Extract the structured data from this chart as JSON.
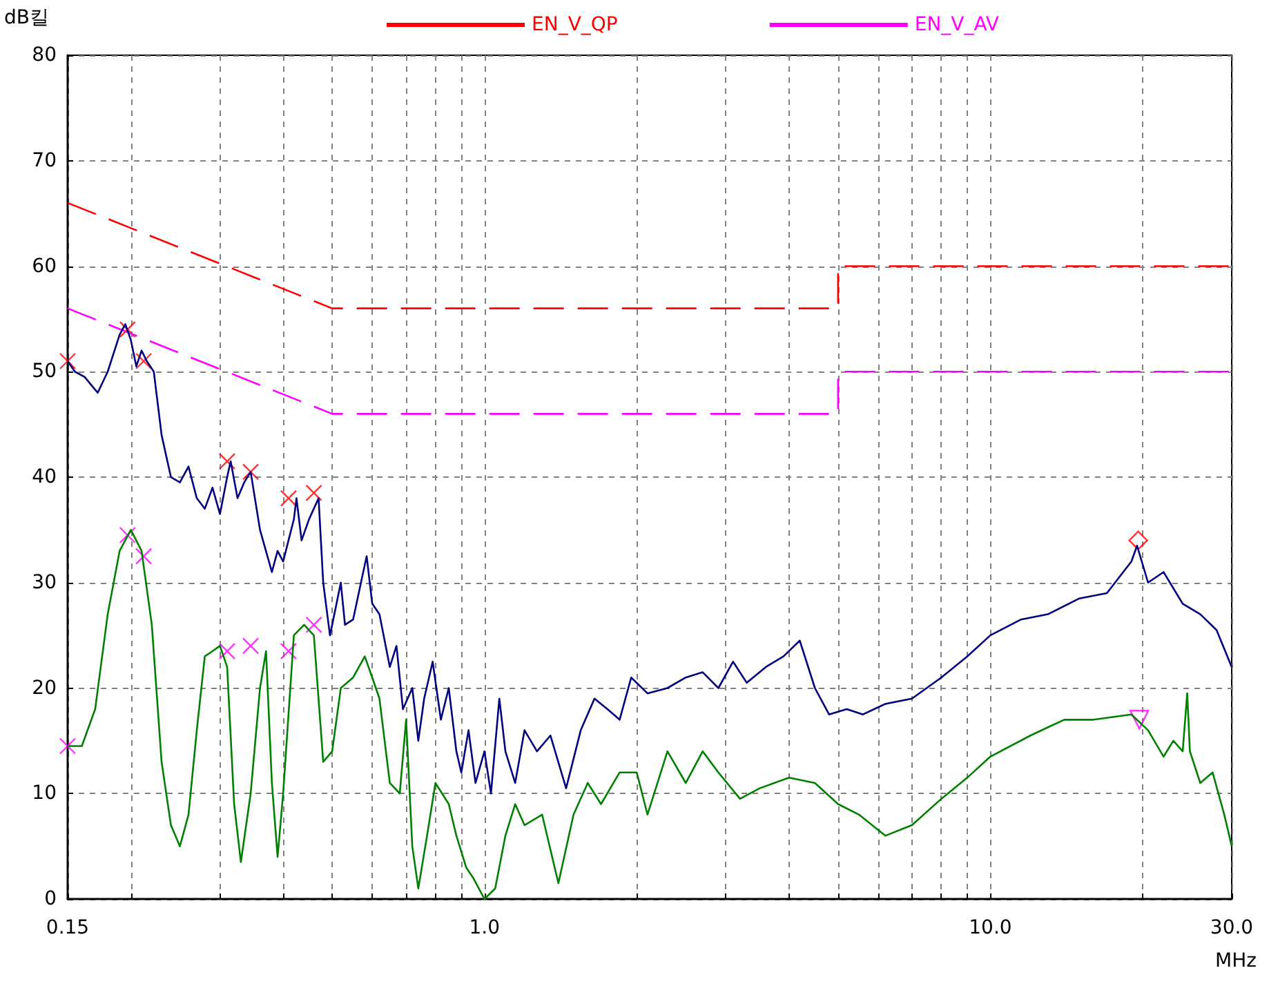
{
  "chart_data": {
    "type": "line",
    "xlabel": "MHz",
    "ylabel": "dB킬",
    "log": "x",
    "grid": true,
    "legend": "top",
    "xlim": [
      0.15,
      30
    ],
    "ylim": [
      0,
      80
    ],
    "xticks": [
      {
        "value": 0.15,
        "label": "0.15"
      },
      {
        "value": 0.2,
        "label": null
      },
      {
        "value": 0.3,
        "label": null
      },
      {
        "value": 0.4,
        "label": null
      },
      {
        "value": 0.5,
        "label": null
      },
      {
        "value": 0.6,
        "label": null
      },
      {
        "value": 0.7,
        "label": null
      },
      {
        "value": 0.8,
        "label": null
      },
      {
        "value": 0.9,
        "label": null
      },
      {
        "value": 1,
        "label": "1.0"
      },
      {
        "value": 2,
        "label": null
      },
      {
        "value": 3,
        "label": null
      },
      {
        "value": 4,
        "label": null
      },
      {
        "value": 5,
        "label": null
      },
      {
        "value": 6,
        "label": null
      },
      {
        "value": 7,
        "label": null
      },
      {
        "value": 8,
        "label": null
      },
      {
        "value": 9,
        "label": null
      },
      {
        "value": 10,
        "label": "10.0"
      },
      {
        "value": 20,
        "label": null
      },
      {
        "value": 30,
        "label": "30.0"
      }
    ],
    "yticks": [
      0,
      10,
      20,
      30,
      40,
      50,
      60,
      70,
      80
    ],
    "series": [
      {
        "name": "EN_V_QP",
        "color": "#ff0000",
        "line_style": "dashed",
        "marker": "none",
        "x": [
          0.15,
          0.5,
          5,
          5,
          30
        ],
        "values": [
          66,
          56,
          56,
          60,
          60
        ]
      },
      {
        "name": "EN_V_AV",
        "color": "#ff00ff",
        "line_style": "dashed",
        "marker": "none",
        "x": [
          0.15,
          0.5,
          5,
          5,
          30
        ],
        "values": [
          56,
          46,
          46,
          50,
          50
        ]
      },
      {
        "color": "#000080",
        "line_style": "solid",
        "marker": "none",
        "x": [
          0.15,
          0.155,
          0.162,
          0.172,
          0.18,
          0.19,
          0.195,
          0.2,
          0.205,
          0.21,
          0.215,
          0.222,
          0.23,
          0.24,
          0.25,
          0.26,
          0.27,
          0.28,
          0.29,
          0.3,
          0.31,
          0.315,
          0.325,
          0.335,
          0.345,
          0.36,
          0.38,
          0.39,
          0.4,
          0.42,
          0.425,
          0.435,
          0.45,
          0.47,
          0.48,
          0.495,
          0.51,
          0.52,
          0.53,
          0.55,
          0.57,
          0.585,
          0.6,
          0.62,
          0.65,
          0.67,
          0.69,
          0.72,
          0.74,
          0.76,
          0.79,
          0.82,
          0.85,
          0.88,
          0.9,
          0.93,
          0.96,
          1.0,
          1.03,
          1.07,
          1.1,
          1.15,
          1.2,
          1.27,
          1.35,
          1.45,
          1.55,
          1.65,
          1.75,
          1.85,
          1.95,
          2.1,
          2.3,
          2.5,
          2.7,
          2.9,
          3.1,
          3.3,
          3.6,
          3.9,
          4.2,
          4.5,
          4.8,
          5.2,
          5.6,
          6.2,
          7,
          8,
          9,
          10,
          11.5,
          13,
          15,
          17,
          19,
          19.5,
          20.5,
          22,
          24,
          26,
          28,
          30
        ],
        "values": [
          51,
          50,
          49.5,
          48,
          50,
          53.5,
          54.5,
          53,
          50.5,
          52,
          51,
          50,
          44,
          40,
          39.5,
          41,
          38,
          37,
          39,
          36.5,
          40,
          41.5,
          38,
          39.5,
          40.5,
          35,
          31,
          33,
          32,
          36,
          38,
          34,
          36,
          38,
          30,
          25,
          28,
          30,
          26,
          26.5,
          30,
          32.5,
          28,
          27,
          22,
          24,
          18,
          20,
          15,
          19,
          22.5,
          17,
          20,
          14,
          12,
          16,
          11,
          14,
          10,
          19,
          14,
          11,
          16,
          14,
          15.5,
          10.5,
          16,
          19,
          18,
          17,
          21,
          19.5,
          20,
          21,
          21.5,
          20,
          22.5,
          20.5,
          22,
          23,
          24.5,
          20,
          17.5,
          18,
          17.5,
          18.5,
          19,
          21,
          23,
          25,
          26.5,
          27,
          28.5,
          29,
          32,
          33.5,
          30,
          31,
          28,
          27,
          25.5,
          22
        ]
      },
      {
        "color": "#008000",
        "line_style": "solid",
        "marker": "none",
        "x": [
          0.15,
          0.16,
          0.17,
          0.18,
          0.19,
          0.2,
          0.21,
          0.22,
          0.23,
          0.24,
          0.25,
          0.26,
          0.27,
          0.28,
          0.29,
          0.3,
          0.31,
          0.32,
          0.33,
          0.345,
          0.36,
          0.37,
          0.38,
          0.39,
          0.4,
          0.42,
          0.44,
          0.46,
          0.48,
          0.5,
          0.52,
          0.55,
          0.58,
          0.6,
          0.62,
          0.65,
          0.68,
          0.7,
          0.72,
          0.74,
          0.77,
          0.8,
          0.85,
          0.88,
          0.92,
          0.95,
          1,
          1.05,
          1.1,
          1.15,
          1.2,
          1.3,
          1.4,
          1.5,
          1.6,
          1.7,
          1.85,
          2,
          2.1,
          2.3,
          2.5,
          2.7,
          2.9,
          3.2,
          3.5,
          4,
          4.5,
          5,
          5.5,
          6.2,
          7,
          8,
          9,
          10,
          12,
          14,
          16,
          19,
          20.5,
          22,
          23,
          24,
          24.5,
          24.8,
          26,
          27.5,
          29,
          30
        ],
        "values": [
          14.5,
          14.5,
          18,
          27,
          33,
          35,
          33,
          26,
          13,
          7,
          5,
          8,
          16,
          23,
          23.5,
          24,
          22,
          9,
          3.5,
          10,
          20,
          23.5,
          11,
          4,
          10,
          25,
          26,
          25,
          13,
          14,
          20,
          21,
          23,
          21,
          19,
          11,
          10,
          17,
          5,
          1,
          6,
          11,
          9,
          6,
          3,
          2,
          0,
          1,
          6,
          9,
          7,
          8,
          1.5,
          8,
          11,
          9,
          12,
          12,
          8,
          14,
          11,
          14,
          12,
          9.5,
          10.5,
          11.5,
          11,
          9,
          8,
          6,
          7,
          9.5,
          11.5,
          13.5,
          15.5,
          17,
          17,
          17.5,
          16,
          13.5,
          15,
          14,
          19.5,
          14,
          11,
          12,
          8,
          5
        ]
      },
      {
        "type": "scatter",
        "color": "#ff0000",
        "marker": "cross",
        "x": [
          0.15,
          0.197,
          0.212,
          0.31,
          0.345,
          0.41,
          0.46
        ],
        "values": [
          51,
          54,
          51,
          41.5,
          40.5,
          38,
          38.5
        ]
      },
      {
        "type": "scatter",
        "color": "#ff00ff",
        "marker": "cross",
        "x": [
          0.15,
          0.197,
          0.212,
          0.31,
          0.345,
          0.41,
          0.46
        ],
        "values": [
          14.5,
          34.5,
          32.5,
          23.5,
          24,
          23.5,
          26
        ]
      },
      {
        "type": "scatter",
        "color": "#ff0000",
        "marker": "diamond",
        "x": [
          19.6
        ],
        "values": [
          34
        ]
      },
      {
        "type": "scatter",
        "color": "#ff00ff",
        "marker": "triangle",
        "x": [
          19.7
        ],
        "values": [
          17
        ]
      }
    ]
  }
}
